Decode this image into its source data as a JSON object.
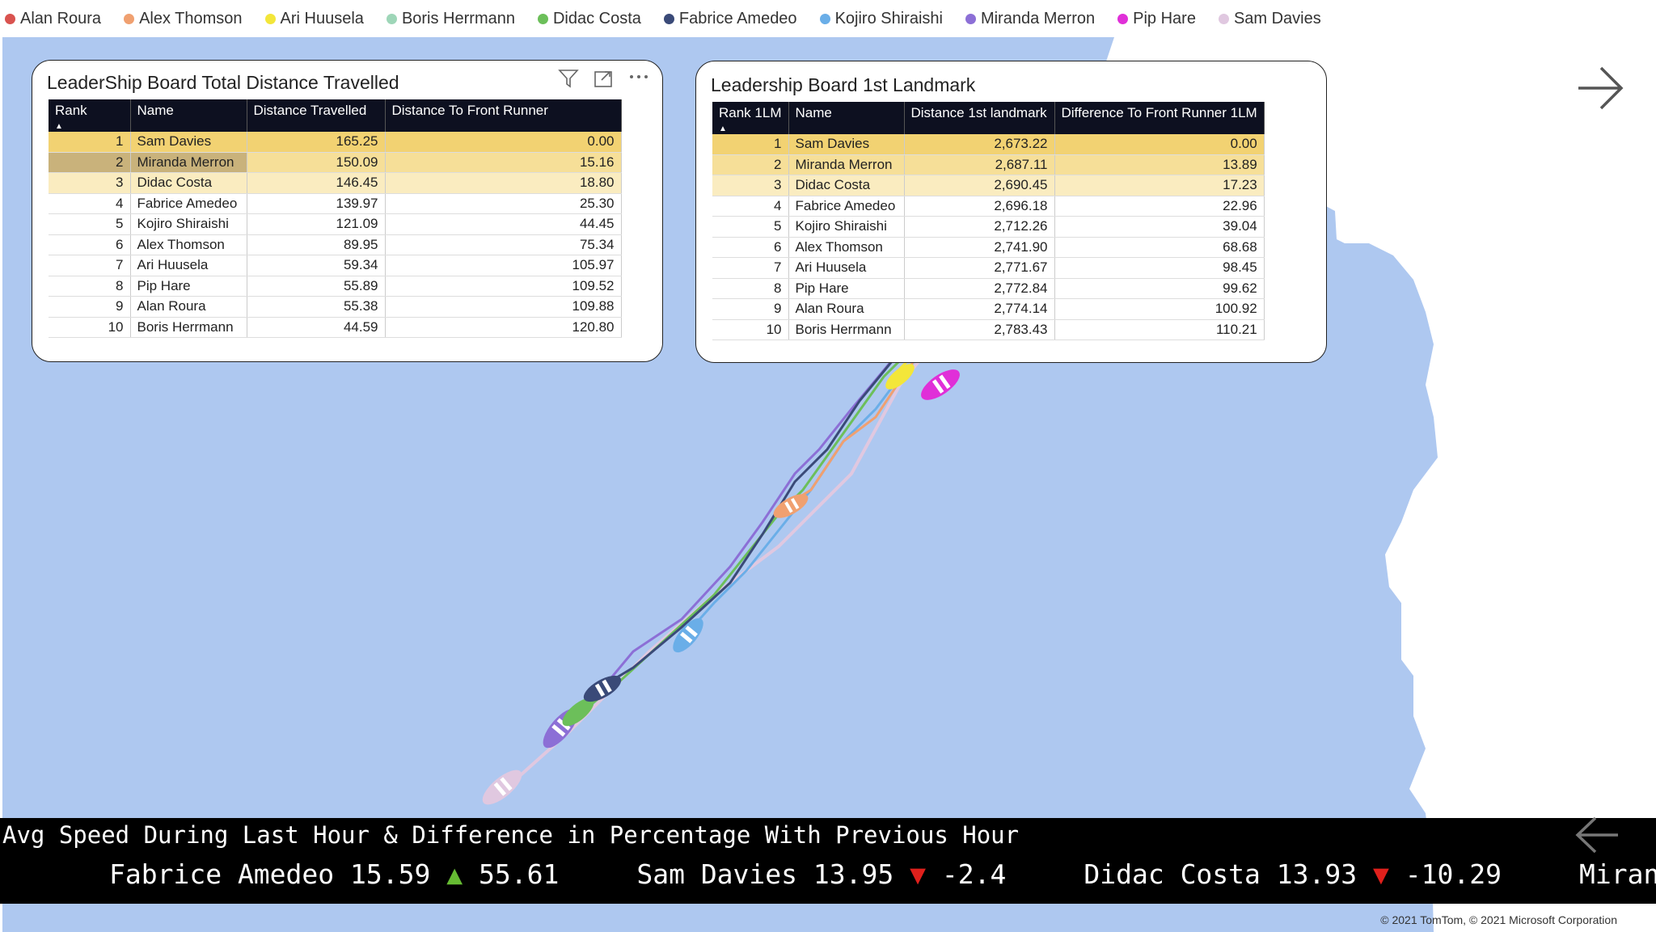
{
  "legend": [
    {
      "name": "Alan Roura",
      "color": "#d9534f"
    },
    {
      "name": "Alex Thomson",
      "color": "#f0a070"
    },
    {
      "name": "Ari Huusela",
      "color": "#f3e63a"
    },
    {
      "name": "Boris Herrmann",
      "color": "#9ed6b8"
    },
    {
      "name": "Didac Costa",
      "color": "#6cbf5a"
    },
    {
      "name": "Fabrice Amedeo",
      "color": "#3a4a78"
    },
    {
      "name": "Kojiro Shiraishi",
      "color": "#6aaee8"
    },
    {
      "name": "Miranda Merron",
      "color": "#8c6fd6"
    },
    {
      "name": "Pip Hare",
      "color": "#e02fd8"
    },
    {
      "name": "Sam Davies",
      "color": "#e0c8e0"
    }
  ],
  "board1": {
    "title": "LeaderShip Board Total Distance Travelled",
    "headers": [
      "Rank",
      "Name",
      "Distance Travelled",
      "Distance To Front Runner"
    ],
    "rows": [
      [
        "1",
        "Sam Davies",
        "165.25",
        "0.00"
      ],
      [
        "2",
        "Miranda Merron",
        "150.09",
        "15.16"
      ],
      [
        "3",
        "Didac Costa",
        "146.45",
        "18.80"
      ],
      [
        "4",
        "Fabrice Amedeo",
        "139.97",
        "25.30"
      ],
      [
        "5",
        "Kojiro Shiraishi",
        "121.09",
        "44.45"
      ],
      [
        "6",
        "Alex Thomson",
        "89.95",
        "75.34"
      ],
      [
        "7",
        "Ari Huusela",
        "59.34",
        "105.97"
      ],
      [
        "8",
        "Pip Hare",
        "55.89",
        "109.52"
      ],
      [
        "9",
        "Alan Roura",
        "55.38",
        "109.88"
      ],
      [
        "10",
        "Boris Herrmann",
        "44.59",
        "120.80"
      ]
    ]
  },
  "board2": {
    "title": "Leadership Board 1st Landmark",
    "headers": [
      "Rank 1LM",
      "Name",
      "Distance 1st landmark",
      "Difference To Front Runner 1LM"
    ],
    "rows": [
      [
        "1",
        "Sam Davies",
        "2,673.22",
        "0.00"
      ],
      [
        "2",
        "Miranda Merron",
        "2,687.11",
        "13.89"
      ],
      [
        "3",
        "Didac Costa",
        "2,690.45",
        "17.23"
      ],
      [
        "4",
        "Fabrice Amedeo",
        "2,696.18",
        "22.96"
      ],
      [
        "5",
        "Kojiro Shiraishi",
        "2,712.26",
        "39.04"
      ],
      [
        "6",
        "Alex Thomson",
        "2,741.90",
        "68.68"
      ],
      [
        "7",
        "Ari Huusela",
        "2,771.67",
        "98.45"
      ],
      [
        "8",
        "Pip Hare",
        "2,772.84",
        "99.62"
      ],
      [
        "9",
        "Alan Roura",
        "2,774.14",
        "100.92"
      ],
      [
        "10",
        "Boris Herrmann",
        "2,783.43",
        "110.21"
      ]
    ]
  },
  "ticker": {
    "title": "Avg Speed During Last Hour & Difference in Percentage With Previous Hour",
    "items": [
      {
        "name": "Fabrice Amedeo",
        "speed": "15.59",
        "dir": "up",
        "arrow": "▲",
        "diff": "55.61"
      },
      {
        "name": "Sam Davies",
        "speed": "13.95",
        "dir": "down",
        "arrow": "▼",
        "diff": "-2.4"
      },
      {
        "name": "Didac Costa",
        "speed": "13.93",
        "dir": "down",
        "arrow": "▼",
        "diff": "-10.29"
      },
      {
        "name": "Miranc",
        "speed": "",
        "dir": "",
        "arrow": "",
        "diff": ""
      }
    ]
  },
  "copyright": "© 2021 TomTom, © 2021 Microsoft Corporation",
  "icons": {
    "filter": "filter-icon",
    "expand": "focus-mode-icon",
    "more": "more-options-icon",
    "next": "arrow-right-icon",
    "prev": "arrow-left-icon"
  },
  "colors": {
    "sea": "#aec8f0",
    "land": "#ffffff",
    "highlight1": "#f2d272",
    "header": "#0d1020"
  }
}
